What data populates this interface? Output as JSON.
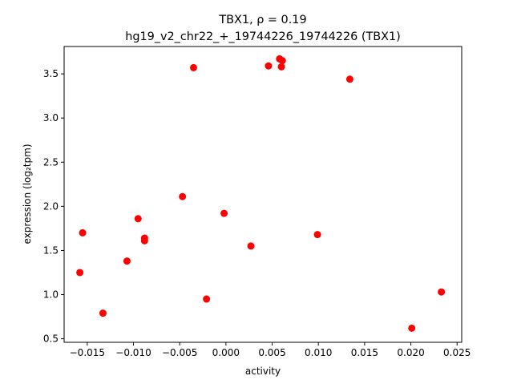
{
  "chart_data": {
    "type": "scatter",
    "title_line1": "TBX1, ρ = 0.19",
    "title_line2": "hg19_v2_chr22_+_19744226_19744226 (TBX1)",
    "xlabel": "activity",
    "ylabel": "expression (log₂tpm)",
    "xlim": [
      -0.0175,
      0.0255
    ],
    "ylim": [
      0.46,
      3.81
    ],
    "x_ticks": [
      -0.015,
      -0.01,
      -0.005,
      0.0,
      0.005,
      0.01,
      0.015,
      0.02,
      0.025
    ],
    "x_tick_labels": [
      "−0.015",
      "−0.010",
      "−0.005",
      "0.000",
      "0.005",
      "0.010",
      "0.015",
      "0.020",
      "0.025"
    ],
    "y_ticks": [
      0.5,
      1.0,
      1.5,
      2.0,
      2.5,
      3.0,
      3.5
    ],
    "y_tick_labels": [
      "0.5",
      "1.0",
      "1.5",
      "2.0",
      "2.5",
      "3.0",
      "3.5"
    ],
    "grid": false,
    "marker_color": "#ff0000",
    "points": [
      {
        "x": -0.0158,
        "y": 1.25
      },
      {
        "x": -0.0155,
        "y": 1.7
      },
      {
        "x": -0.0133,
        "y": 0.79
      },
      {
        "x": -0.0107,
        "y": 1.38
      },
      {
        "x": -0.0095,
        "y": 1.86
      },
      {
        "x": -0.0088,
        "y": 1.64
      },
      {
        "x": -0.0088,
        "y": 1.61
      },
      {
        "x": -0.0047,
        "y": 2.11
      },
      {
        "x": -0.0035,
        "y": 3.57
      },
      {
        "x": -0.0021,
        "y": 0.95
      },
      {
        "x": -0.0002,
        "y": 1.92
      },
      {
        "x": 0.0027,
        "y": 1.55
      },
      {
        "x": 0.0046,
        "y": 3.59
      },
      {
        "x": 0.0058,
        "y": 3.67
      },
      {
        "x": 0.0061,
        "y": 3.65
      },
      {
        "x": 0.006,
        "y": 3.58
      },
      {
        "x": 0.0099,
        "y": 1.68
      },
      {
        "x": 0.0134,
        "y": 3.44
      },
      {
        "x": 0.0201,
        "y": 0.62
      },
      {
        "x": 0.0233,
        "y": 1.03
      }
    ]
  }
}
